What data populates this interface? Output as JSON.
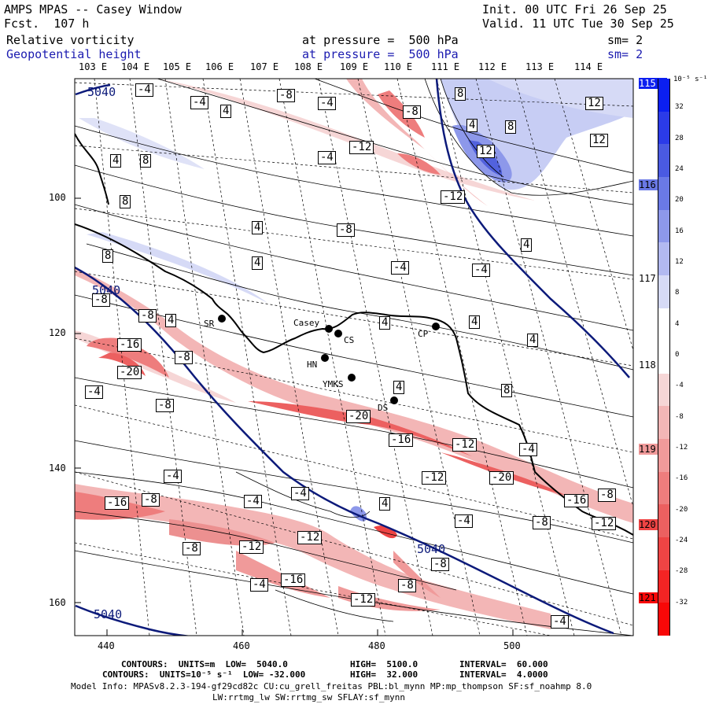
{
  "header": {
    "app_title": "AMPS MPAS -- Casey Window",
    "forecast": "Fcst.  107 h",
    "init": "Init. 00 UTC Fri 26 Sep 25",
    "valid": "Valid. 11 UTC Tue 30 Sep 25",
    "field1_name": "Relative vorticity",
    "field1_level": "at pressure =  500 hPa",
    "field1_smooth": "sm= 2",
    "field2_name": "Geopotential height",
    "field2_level": "at pressure =  500 hPa",
    "field2_smooth": "sm= 2"
  },
  "map": {
    "lon_labels_top": [
      "103 E",
      "104 E",
      "105 E",
      "106 E",
      "107 E",
      "108 E",
      "109 E",
      "110 E",
      "111 E",
      "112 E",
      "113 E",
      "114 E"
    ],
    "lon_labels_right": [
      "115 E",
      "116 E",
      "117 E",
      "118 E",
      "119 E",
      "120 E",
      "121 E"
    ],
    "x_axis_ticks": [
      "440",
      "460",
      "480",
      "500"
    ],
    "y_axis_ticks": [
      "100",
      "120",
      "140",
      "160"
    ],
    "stations": [
      {
        "label": "SR"
      },
      {
        "label": "Casey"
      },
      {
        "label": "CS"
      },
      {
        "label": "HN"
      },
      {
        "label": "YMKS"
      },
      {
        "label": "DS"
      },
      {
        "label": "CP"
      }
    ],
    "height_contour_label": "5040",
    "vort_labels": {
      "pos4": "4",
      "pos8": "8",
      "pos12": "12",
      "neg4": "-4",
      "neg8": "-8",
      "neg12": "-12",
      "neg16": "-16",
      "neg20": "-20"
    }
  },
  "colorbar": {
    "unit_label": "10⁻⁵ s⁻¹",
    "ticks": [
      "32",
      "28",
      "24",
      "20",
      "16",
      "12",
      "8",
      "4",
      "0",
      "-4",
      "-8",
      "-12",
      "-16",
      "-20",
      "-24",
      "-28",
      "-32"
    ],
    "colors": [
      "#0b1ff0",
      "#2b3be8",
      "#4a5ae2",
      "#6a79e6",
      "#8d98ea",
      "#b2b9f0",
      "#d6daf6",
      "#ffffff",
      "#ffffff",
      "#f6d6d6",
      "#f3b6b6",
      "#f09a9a",
      "#ee7d7d",
      "#ec6060",
      "#ee4444",
      "#f32424",
      "#f80808"
    ]
  },
  "footer": {
    "line1": {
      "prefix": "CONTOURS:  UNITS=m  LOW=  5040.0",
      "high": "HIGH=  5100.0",
      "interval": "INTERVAL=  60.000"
    },
    "line2": {
      "prefix": "CONTOURS:  UNITS=10⁻⁵ s⁻¹  LOW= -32.000",
      "high": "HIGH=  32.000",
      "interval": "INTERVAL=  4.0000"
    },
    "line3": "Model Info: MPASv8.2.3-194-gf29cd82c CU:cu_grell_freitas PBL:bl_mynn MP:mp_thompson SF:sf_noahmp 8.0",
    "line4": "LW:rrtmg_lw SW:rrtmg_sw SFLAY:sf_mynn"
  },
  "colors": {
    "navy": "#0c1a7a",
    "blue_text": "#1b1bb0",
    "red_shade": "#ee6b6b",
    "blue_shade": "#7f8ae6"
  }
}
